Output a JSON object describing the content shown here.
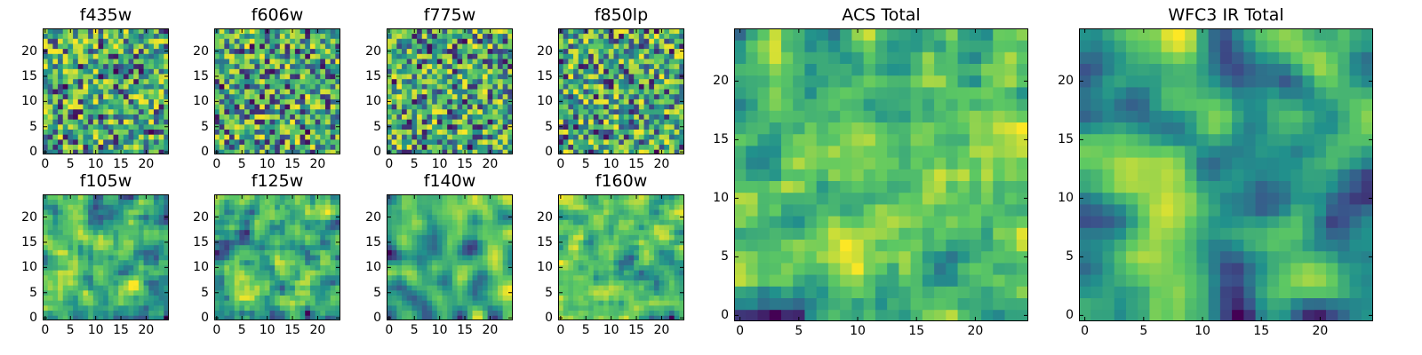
{
  "figure": {
    "colormap": [
      "#440154",
      "#3b528b",
      "#21918c",
      "#5ec962",
      "#fde725"
    ]
  },
  "chart_data": [
    {
      "type": "heatmap",
      "title": "f435w",
      "grid_size": 25,
      "xlim": [
        0,
        24
      ],
      "ylim": [
        0,
        24
      ],
      "xticks": [
        0,
        5,
        10,
        15,
        20
      ],
      "yticks": [
        0,
        5,
        10,
        15,
        20
      ],
      "smooth": 0,
      "seed": 11
    },
    {
      "type": "heatmap",
      "title": "f606w",
      "grid_size": 25,
      "xlim": [
        0,
        24
      ],
      "ylim": [
        0,
        24
      ],
      "xticks": [
        0,
        5,
        10,
        15,
        20
      ],
      "yticks": [
        0,
        5,
        10,
        15,
        20
      ],
      "smooth": 0,
      "seed": 23
    },
    {
      "type": "heatmap",
      "title": "f775w",
      "grid_size": 25,
      "xlim": [
        0,
        24
      ],
      "ylim": [
        0,
        24
      ],
      "xticks": [
        0,
        5,
        10,
        15,
        20
      ],
      "yticks": [
        0,
        5,
        10,
        15,
        20
      ],
      "smooth": 0,
      "seed": 37
    },
    {
      "type": "heatmap",
      "title": "f850lp",
      "grid_size": 25,
      "xlim": [
        0,
        24
      ],
      "ylim": [
        0,
        24
      ],
      "xticks": [
        0,
        5,
        10,
        15,
        20
      ],
      "yticks": [
        0,
        5,
        10,
        15,
        20
      ],
      "smooth": 0,
      "seed": 41
    },
    {
      "type": "heatmap",
      "title": "f105w",
      "grid_size": 25,
      "xlim": [
        0,
        24
      ],
      "ylim": [
        0,
        24
      ],
      "xticks": [
        0,
        5,
        10,
        15,
        20
      ],
      "yticks": [
        0,
        5,
        10,
        15,
        20
      ],
      "smooth": 1,
      "seed": 53
    },
    {
      "type": "heatmap",
      "title": "f125w",
      "grid_size": 25,
      "xlim": [
        0,
        24
      ],
      "ylim": [
        0,
        24
      ],
      "xticks": [
        0,
        5,
        10,
        15,
        20
      ],
      "yticks": [
        0,
        5,
        10,
        15,
        20
      ],
      "smooth": 1,
      "seed": 67
    },
    {
      "type": "heatmap",
      "title": "f140w",
      "grid_size": 25,
      "xlim": [
        0,
        24
      ],
      "ylim": [
        0,
        24
      ],
      "xticks": [
        0,
        5,
        10,
        15,
        20
      ],
      "yticks": [
        0,
        5,
        10,
        15,
        20
      ],
      "smooth": 2,
      "seed": 79
    },
    {
      "type": "heatmap",
      "title": "f160w",
      "grid_size": 25,
      "xlim": [
        0,
        24
      ],
      "ylim": [
        0,
        24
      ],
      "xticks": [
        0,
        5,
        10,
        15,
        20
      ],
      "yticks": [
        0,
        5,
        10,
        15,
        20
      ],
      "smooth": 1,
      "seed": 83
    },
    {
      "type": "heatmap",
      "title": "ACS Total",
      "grid_size": 25,
      "xlim": [
        0,
        24
      ],
      "ylim": [
        0,
        24
      ],
      "xticks": [
        0,
        5,
        10,
        15,
        20
      ],
      "yticks": [
        0,
        5,
        10,
        15,
        20
      ],
      "smooth": 1,
      "seed": 97
    },
    {
      "type": "heatmap",
      "title": "WFC3 IR Total",
      "grid_size": 25,
      "xlim": [
        0,
        24
      ],
      "ylim": [
        0,
        24
      ],
      "xticks": [
        0,
        5,
        10,
        15,
        20
      ],
      "yticks": [
        0,
        5,
        10,
        15,
        20
      ],
      "smooth": 2,
      "seed": 101
    }
  ]
}
